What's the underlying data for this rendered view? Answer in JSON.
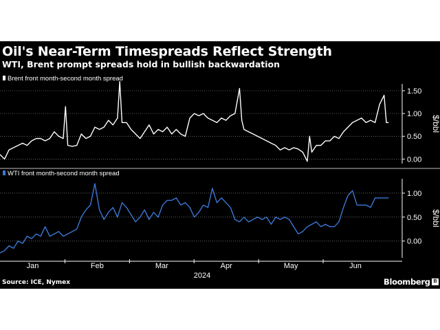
{
  "header": {
    "title": "Oil's Near-Term Timespreads Reflect Strength",
    "subtitle": "WTI, Brent prompt spreads hold in bullish backwardation"
  },
  "footer": {
    "source": "Source: ICE, Nymex",
    "brand": "Bloomberg"
  },
  "colors": {
    "background": "#000000",
    "brent": "#ffffff",
    "wti": "#3b78d6",
    "grid": "#8a8a8a"
  },
  "chart_data": [
    {
      "type": "line",
      "legend": "Brent front month-second month spread",
      "ylabel": "$/bbl",
      "ylim": [
        -0.1,
        1.65
      ],
      "yticks": [
        "1.50",
        "1.00",
        "0.50",
        "0.00"
      ],
      "yticks_values": [
        1.5,
        1.0,
        0.5,
        0.0
      ],
      "x": [
        0,
        2,
        4,
        6,
        8,
        10,
        12,
        14,
        16,
        18,
        20,
        22,
        24,
        26,
        28,
        29,
        30,
        32,
        34,
        36,
        38,
        40,
        42,
        44,
        46,
        48,
        50,
        52,
        53,
        54,
        56,
        58,
        60,
        62,
        64,
        66,
        68,
        70,
        72,
        74,
        76,
        78,
        80,
        82,
        84,
        86,
        88,
        90,
        92,
        94,
        96,
        98,
        100,
        102,
        104,
        106,
        107,
        108,
        110,
        112,
        114,
        116,
        118,
        120,
        122,
        124,
        126,
        128,
        130,
        132,
        134,
        136,
        137,
        138,
        140,
        142,
        144,
        146,
        148,
        150,
        152,
        154,
        156,
        158,
        160,
        161,
        162,
        164,
        166,
        168,
        170,
        171,
        172
      ],
      "values": [
        0.1,
        0.0,
        0.2,
        0.25,
        0.3,
        0.35,
        0.3,
        0.4,
        0.45,
        0.45,
        0.4,
        0.45,
        0.6,
        0.5,
        0.45,
        1.15,
        0.3,
        0.28,
        0.3,
        0.55,
        0.45,
        0.5,
        0.7,
        0.65,
        0.7,
        0.85,
        0.75,
        0.9,
        1.7,
        0.8,
        0.8,
        0.65,
        0.55,
        0.45,
        0.6,
        0.75,
        0.55,
        0.65,
        0.6,
        0.7,
        0.55,
        0.65,
        0.55,
        0.5,
        0.9,
        1.0,
        0.95,
        1.0,
        0.9,
        0.85,
        0.8,
        0.9,
        0.85,
        0.95,
        1.0,
        1.55,
        0.85,
        0.65,
        0.6,
        0.55,
        0.5,
        0.45,
        0.4,
        0.35,
        0.3,
        0.2,
        0.25,
        0.2,
        0.25,
        0.22,
        0.15,
        -0.05,
        0.5,
        0.15,
        0.3,
        0.3,
        0.4,
        0.4,
        0.5,
        0.45,
        0.6,
        0.7,
        0.8,
        0.85,
        0.9,
        0.85,
        0.8,
        0.85,
        0.8,
        1.2,
        1.4,
        0.8,
        0.8
      ]
    },
    {
      "type": "line",
      "legend": "WTI front month-second month spread",
      "ylabel": "$/bbl",
      "ylim": [
        -0.35,
        1.3
      ],
      "yticks": [
        "1.00",
        "0.50",
        "0.00"
      ],
      "yticks_values": [
        1.0,
        0.5,
        0.0
      ],
      "x": [
        0,
        2,
        4,
        6,
        8,
        10,
        12,
        14,
        16,
        18,
        20,
        22,
        24,
        26,
        28,
        30,
        32,
        34,
        36,
        38,
        40,
        42,
        44,
        46,
        48,
        50,
        52,
        54,
        56,
        58,
        60,
        62,
        64,
        66,
        68,
        70,
        72,
        74,
        76,
        78,
        80,
        82,
        84,
        86,
        88,
        90,
        92,
        94,
        96,
        98,
        100,
        102,
        104,
        106,
        108,
        110,
        112,
        114,
        116,
        118,
        120,
        122,
        124,
        126,
        128,
        130,
        132,
        134,
        136,
        138,
        140,
        142,
        144,
        146,
        148,
        150,
        152,
        154,
        156,
        158,
        160,
        162,
        164,
        166,
        168,
        170,
        172
      ],
      "values": [
        -0.25,
        -0.2,
        -0.1,
        -0.15,
        0.0,
        -0.05,
        0.1,
        0.05,
        0.15,
        0.1,
        0.3,
        0.1,
        0.15,
        0.2,
        0.1,
        0.15,
        0.2,
        0.25,
        0.5,
        0.65,
        0.75,
        1.2,
        0.65,
        0.45,
        0.6,
        0.7,
        0.5,
        0.8,
        0.7,
        0.55,
        0.4,
        0.5,
        0.65,
        0.45,
        0.6,
        0.5,
        0.75,
        0.85,
        0.85,
        0.9,
        0.75,
        0.8,
        0.7,
        0.5,
        0.6,
        0.75,
        0.7,
        1.1,
        0.8,
        0.9,
        0.8,
        0.7,
        0.45,
        0.4,
        0.5,
        0.4,
        0.45,
        0.5,
        0.45,
        0.5,
        0.35,
        0.5,
        0.45,
        0.5,
        0.45,
        0.3,
        0.15,
        0.2,
        0.3,
        0.35,
        0.4,
        0.3,
        0.35,
        0.3,
        0.3,
        0.4,
        0.7,
        0.95,
        1.05,
        0.75,
        0.75,
        0.75,
        0.7,
        0.9,
        0.9,
        0.9,
        0.9
      ]
    }
  ],
  "x_axis": {
    "months": [
      "Jan",
      "Feb",
      "Mar",
      "Apr",
      "May",
      "Jun"
    ],
    "month_positions": [
      8,
      27,
      46,
      65,
      84,
      103
    ],
    "year": "2024"
  }
}
